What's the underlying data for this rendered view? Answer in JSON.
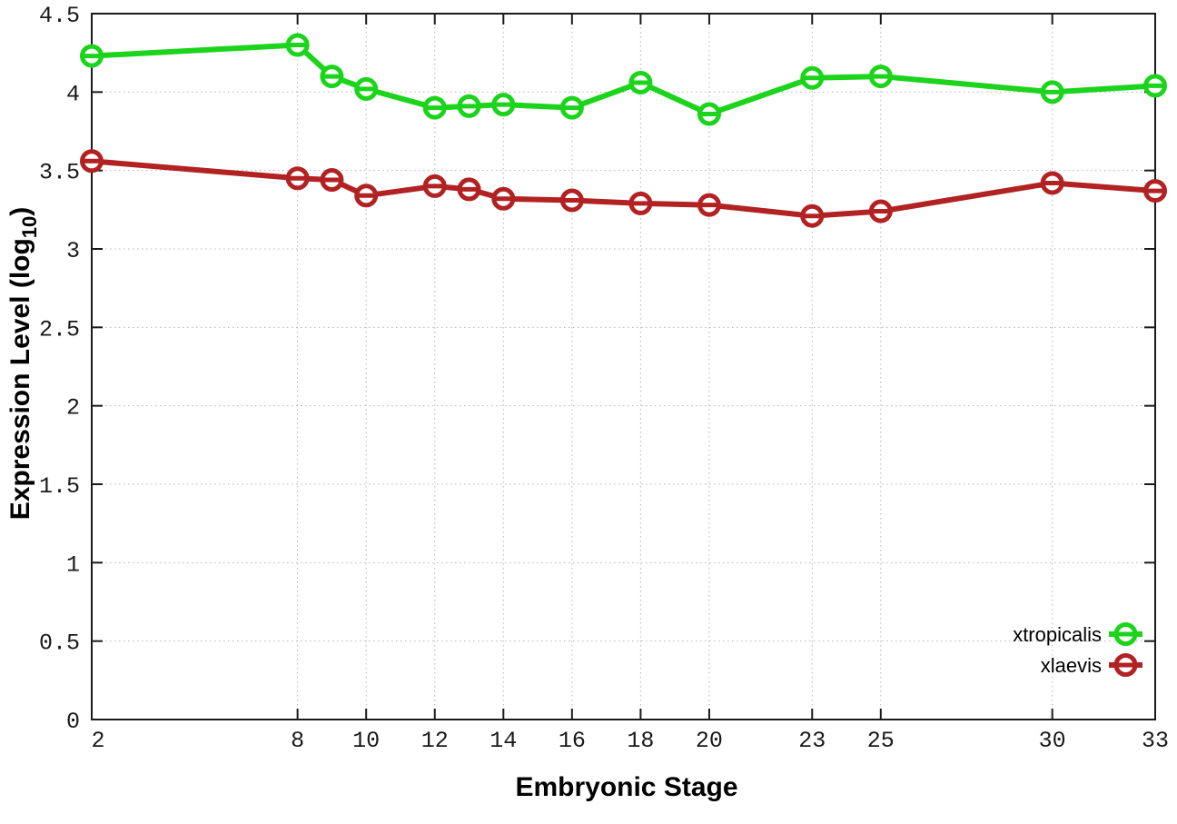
{
  "chart_data": {
    "type": "line",
    "title": "",
    "xlabel": "Embryonic Stage",
    "ylabel": "Expression Level (log10)",
    "ylabel_parts": {
      "prefix": "Expression Level (log",
      "sub": "10",
      "suffix": ")"
    },
    "x": [
      2,
      8,
      9,
      10,
      12,
      13,
      14,
      16,
      18,
      20,
      23,
      25,
      30,
      33
    ],
    "series": [
      {
        "name": "xtropicalis",
        "color": "#1bd41b",
        "values": [
          4.23,
          4.3,
          4.1,
          4.02,
          3.9,
          3.91,
          3.92,
          3.9,
          4.06,
          3.86,
          4.09,
          4.1,
          4.0,
          4.04
        ]
      },
      {
        "name": "xlaevis",
        "color": "#b22222",
        "values": [
          3.56,
          3.45,
          3.44,
          3.34,
          3.4,
          3.38,
          3.32,
          3.31,
          3.29,
          3.28,
          3.21,
          3.24,
          3.42,
          3.37
        ]
      }
    ],
    "xlim": [
      2,
      33
    ],
    "ylim": [
      0,
      4.5
    ],
    "xticks": [
      2,
      8,
      10,
      12,
      14,
      16,
      18,
      20,
      23,
      25,
      30,
      33
    ],
    "xtick_labels": [
      "2",
      "8",
      "10",
      "12",
      "14",
      "16",
      "18",
      "20",
      "23",
      "25",
      "30",
      "33"
    ],
    "yticks": [
      0,
      0.5,
      1,
      1.5,
      2,
      2.5,
      3,
      3.5,
      4,
      4.5
    ],
    "ytick_labels": [
      "0",
      "0.5",
      "1",
      "1.5",
      "2",
      "2.5",
      "3",
      "3.5",
      "4",
      "4.5"
    ],
    "grid": true,
    "legend_position": "inside-bottom-right",
    "legend_entries": [
      "xtropicalis",
      "xlaevis"
    ]
  },
  "colors": {
    "background": "#ffffff",
    "border": "#1a1a1a",
    "gridline": "#b5b5b5",
    "tick_text": "#1a1a1a",
    "marker_fill": "#ffffff"
  }
}
